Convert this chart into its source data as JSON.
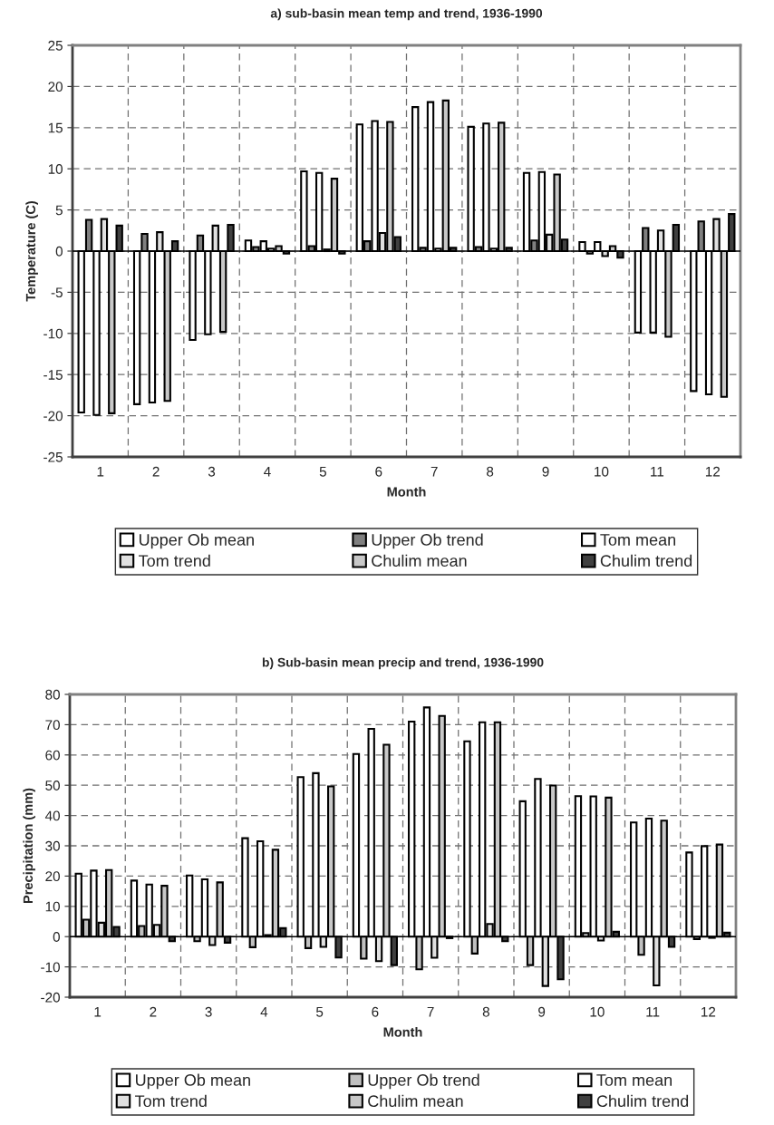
{
  "chart_data": [
    {
      "type": "bar",
      "title": "a) sub-basin mean temp and trend, 1936-1990",
      "xlabel": "Month",
      "ylabel": "Temperature (C)",
      "categories": [
        "1",
        "2",
        "3",
        "4",
        "5",
        "6",
        "7",
        "8",
        "9",
        "10",
        "11",
        "12"
      ],
      "ylim": [
        -25,
        25
      ],
      "yticks": [
        -25,
        -20,
        -15,
        -10,
        -5,
        0,
        5,
        10,
        15,
        20,
        25
      ],
      "grid": true,
      "legend": "bottom",
      "series": [
        {
          "name": "Upper Ob mean",
          "color": "#ffffff",
          "values": [
            -19.6,
            -18.6,
            -10.8,
            1.3,
            9.7,
            15.4,
            17.5,
            15.1,
            9.5,
            1.1,
            -9.9,
            -17.0
          ]
        },
        {
          "name": "Upper Ob trend",
          "color": "#808080",
          "values": [
            3.8,
            2.1,
            1.9,
            0.5,
            0.6,
            1.2,
            0.4,
            0.5,
            1.3,
            -0.3,
            2.8,
            3.6
          ]
        },
        {
          "name": "Tom mean",
          "color": "#ffffff",
          "values": [
            -19.9,
            -18.4,
            -10.1,
            1.2,
            9.5,
            15.8,
            18.1,
            15.5,
            9.6,
            1.1,
            -9.9,
            -17.4
          ]
        },
        {
          "name": "Tom trend",
          "color": "#e0e0e0",
          "values": [
            3.9,
            2.3,
            3.1,
            0.3,
            0.2,
            2.2,
            0.3,
            0.3,
            2.0,
            -0.6,
            2.5,
            3.9
          ]
        },
        {
          "name": "Chulim mean",
          "color": "#c8c8c8",
          "values": [
            -19.7,
            -18.2,
            -9.8,
            0.6,
            8.8,
            15.7,
            18.3,
            15.6,
            9.3,
            0.6,
            -10.4,
            -17.7
          ]
        },
        {
          "name": "Chulim trend",
          "color": "#404040",
          "values": [
            3.1,
            1.2,
            3.2,
            -0.3,
            -0.3,
            1.7,
            0.4,
            0.4,
            1.4,
            -0.8,
            3.2,
            4.5
          ]
        }
      ]
    },
    {
      "type": "bar",
      "title": "b) Sub-basin mean precip and trend, 1936-1990",
      "xlabel": "Month",
      "ylabel": "Precipitation (mm)",
      "categories": [
        "1",
        "2",
        "3",
        "4",
        "5",
        "6",
        "7",
        "8",
        "9",
        "10",
        "11",
        "12"
      ],
      "ylim": [
        -20,
        80
      ],
      "yticks": [
        -20,
        -10,
        0,
        10,
        20,
        30,
        40,
        50,
        60,
        70,
        80
      ],
      "grid": true,
      "legend": "bottom",
      "series": [
        {
          "name": "Upper Ob mean",
          "color": "#ffffff",
          "values": [
            20.8,
            18.5,
            20.2,
            32.5,
            52.7,
            60.3,
            71.0,
            64.5,
            44.7,
            46.4,
            37.7,
            27.8
          ]
        },
        {
          "name": "Upper Ob trend",
          "color": "#c0c0c0",
          "values": [
            5.6,
            3.5,
            -1.5,
            -3.5,
            -3.8,
            -7.3,
            -10.8,
            -5.6,
            -9.4,
            1.2,
            -6.0,
            -0.8
          ]
        },
        {
          "name": "Tom mean",
          "color": "#ffffff",
          "values": [
            21.8,
            17.2,
            18.9,
            31.5,
            54.0,
            68.6,
            75.7,
            70.8,
            52.1,
            46.3,
            39.0,
            29.9
          ]
        },
        {
          "name": "Tom trend",
          "color": "#e0e0e0",
          "values": [
            4.6,
            3.9,
            -2.8,
            0.5,
            -3.4,
            -8.1,
            -7.0,
            4.2,
            -16.3,
            -1.3,
            -16.1,
            -0.4
          ]
        },
        {
          "name": "Chulim mean",
          "color": "#c8c8c8",
          "values": [
            22.0,
            16.8,
            17.9,
            28.7,
            49.6,
            63.4,
            72.9,
            70.8,
            49.9,
            45.9,
            38.3,
            30.4
          ]
        },
        {
          "name": "Chulim trend",
          "color": "#404040",
          "values": [
            3.2,
            -1.5,
            -2.0,
            2.8,
            -6.9,
            -9.4,
            -0.5,
            -1.5,
            -14.1,
            1.6,
            -3.4,
            1.3
          ]
        }
      ]
    }
  ]
}
